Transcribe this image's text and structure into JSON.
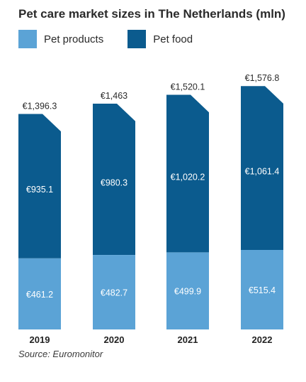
{
  "title": "Pet care market sizes in The Netherlands (mln)",
  "legend": [
    {
      "label": "Pet products",
      "color": "#5ba3d6"
    },
    {
      "label": "Pet food",
      "color": "#0b5b8e"
    }
  ],
  "source": "Source: Euromonitor",
  "chart_data": {
    "type": "bar",
    "stacked": true,
    "title": "Pet care market sizes in The Netherlands (mln)",
    "categories": [
      "2019",
      "2020",
      "2021",
      "2022"
    ],
    "series": [
      {
        "name": "Pet products",
        "values": [
          461.2,
          482.7,
          499.9,
          515.4
        ],
        "labels": [
          "€461.2",
          "€482.7",
          "€499.9",
          "€515.4"
        ],
        "color": "#5ba3d6"
      },
      {
        "name": "Pet food",
        "values": [
          935.1,
          980.3,
          1020.2,
          1061.4
        ],
        "labels": [
          "€935.1",
          "€980.3",
          "€1,020.2",
          "€1,061.4"
        ],
        "color": "#0b5b8e"
      }
    ],
    "totals": [
      1396.3,
      1463,
      1520.1,
      1576.8
    ],
    "total_labels": [
      "€1,396.3",
      "€1,463",
      "€1,520.1",
      "€1,576.8"
    ],
    "legend_position": "top-left",
    "grid": false
  }
}
